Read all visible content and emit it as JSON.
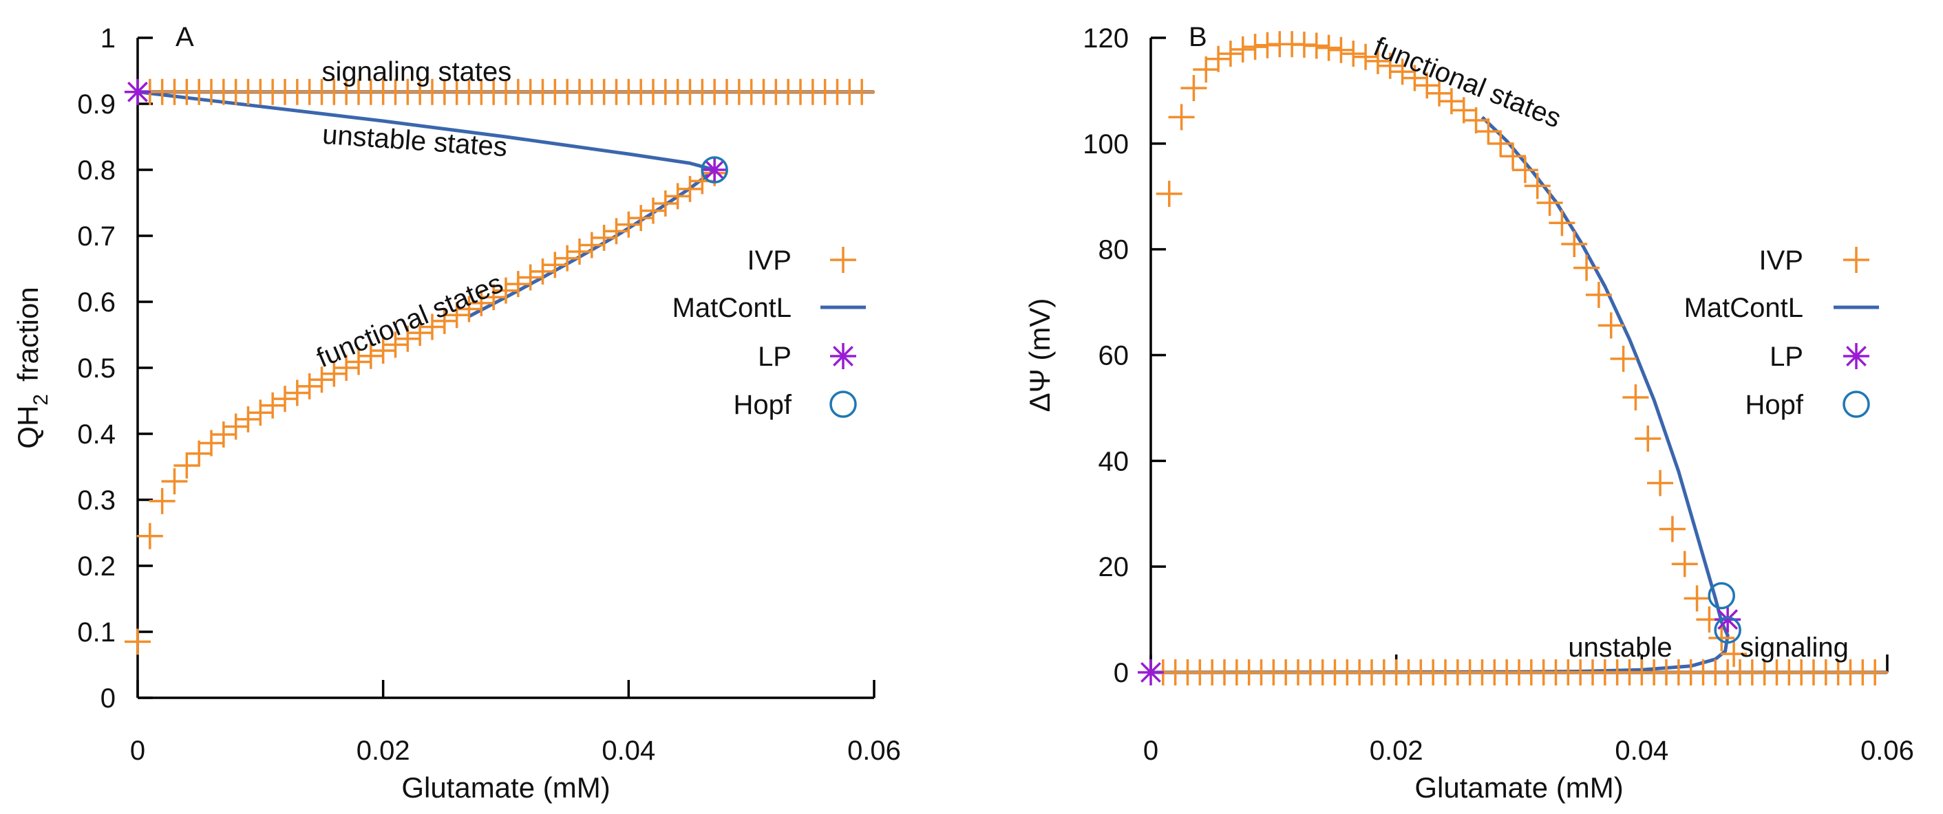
{
  "colors": {
    "ivp": "#F28E2B",
    "matcont": "#3B66AE",
    "lp": "#9A1BD4",
    "hopf": "#1F77B4"
  },
  "chart_data": [
    {
      "type": "line",
      "panel_label": "A",
      "xlabel": "Glutamate (mM)",
      "ylabel_main": "QH",
      "ylabel_sub": "2",
      "ylabel_rest": "fraction",
      "xlim": [
        0,
        0.06
      ],
      "ylim": [
        0,
        1
      ],
      "xticks": [
        0,
        0.02,
        0.04,
        0.06
      ],
      "xtick_labels": [
        "0",
        "0.02",
        "0.04",
        "0.06"
      ],
      "yticks": [
        0,
        0.1,
        0.2,
        0.3,
        0.4,
        0.5,
        0.6,
        0.7,
        0.8,
        0.9,
        1
      ],
      "ytick_labels": [
        "0",
        "0.1",
        "0.2",
        "0.3",
        "0.4",
        "0.5",
        "0.6",
        "0.7",
        "0.8",
        "0.9",
        "1"
      ],
      "annotations": [
        {
          "text": "signaling states",
          "x": 0.015,
          "y": 0.935,
          "rotate": 0
        },
        {
          "text": "unstable states",
          "x": 0.015,
          "y": 0.84,
          "rotate": 4
        },
        {
          "text": "functional states",
          "x": 0.015,
          "y": 0.5,
          "rotate": -23
        }
      ],
      "series": [
        {
          "name": "IVP",
          "kind": "marker-plus",
          "color_key": "ivp",
          "x": [
            0,
            0.001,
            0.002,
            0.003,
            0.004,
            0.005,
            0.006,
            0.007,
            0.008,
            0.009,
            0.01,
            0.011,
            0.012,
            0.013,
            0.014,
            0.015,
            0.016,
            0.017,
            0.018,
            0.019,
            0.02,
            0.021,
            0.022,
            0.023,
            0.024,
            0.025,
            0.026,
            0.027,
            0.028,
            0.029,
            0.03,
            0.031,
            0.032,
            0.033,
            0.034,
            0.035,
            0.036,
            0.037,
            0.038,
            0.039,
            0.04,
            0.041,
            0.042,
            0.043,
            0.044,
            0.045,
            0.046,
            0.047,
            0.001,
            0.002,
            0.003,
            0.004,
            0.005,
            0.006,
            0.007,
            0.008,
            0.009,
            0.01,
            0.011,
            0.012,
            0.013,
            0.014,
            0.015,
            0.016,
            0.017,
            0.018,
            0.019,
            0.02,
            0.021,
            0.022,
            0.023,
            0.024,
            0.025,
            0.026,
            0.027,
            0.028,
            0.029,
            0.03,
            0.031,
            0.032,
            0.033,
            0.034,
            0.035,
            0.036,
            0.037,
            0.038,
            0.039,
            0.04,
            0.041,
            0.042,
            0.043,
            0.044,
            0.045,
            0.046,
            0.047,
            0.048,
            0.049,
            0.05,
            0.051,
            0.052,
            0.053,
            0.054,
            0.055,
            0.056,
            0.057,
            0.058,
            0.059
          ],
          "y": [
            0.085,
            0.245,
            0.298,
            0.328,
            0.352,
            0.37,
            0.386,
            0.399,
            0.411,
            0.422,
            0.432,
            0.443,
            0.453,
            0.462,
            0.472,
            0.482,
            0.491,
            0.5,
            0.509,
            0.518,
            0.526,
            0.535,
            0.544,
            0.553,
            0.562,
            0.571,
            0.58,
            0.589,
            0.598,
            0.607,
            0.617,
            0.627,
            0.637,
            0.646,
            0.656,
            0.666,
            0.676,
            0.686,
            0.697,
            0.707,
            0.717,
            0.727,
            0.738,
            0.749,
            0.76,
            0.771,
            0.783,
            0.795,
            0.918,
            0.918,
            0.918,
            0.918,
            0.918,
            0.918,
            0.918,
            0.918,
            0.918,
            0.918,
            0.918,
            0.918,
            0.918,
            0.918,
            0.918,
            0.918,
            0.918,
            0.918,
            0.918,
            0.918,
            0.918,
            0.918,
            0.918,
            0.918,
            0.918,
            0.918,
            0.918,
            0.918,
            0.918,
            0.918,
            0.918,
            0.918,
            0.918,
            0.918,
            0.918,
            0.918,
            0.918,
            0.918,
            0.918,
            0.918,
            0.918,
            0.918,
            0.918,
            0.918,
            0.918,
            0.918,
            0.918,
            0.918,
            0.918,
            0.918,
            0.918,
            0.918,
            0.918,
            0.918,
            0.918,
            0.918,
            0.918,
            0.918,
            0.918
          ]
        },
        {
          "name": "MatContL",
          "kind": "line",
          "color_key": "matcont",
          "x": [
            0.06,
            0,
            0.005,
            0.01,
            0.015,
            0.02,
            0.025,
            0.03,
            0.035,
            0.04,
            0.045,
            0.047,
            0.045,
            0.042,
            0.039,
            0.036,
            0.033,
            0.03,
            0.027
          ],
          "y": [
            0.918,
            0.918,
            0.907,
            0.896,
            0.885,
            0.874,
            0.862,
            0.85,
            0.837,
            0.824,
            0.81,
            0.8,
            0.772,
            0.735,
            0.7,
            0.668,
            0.637,
            0.607,
            0.578
          ]
        },
        {
          "name": "LP",
          "kind": "marker-star",
          "color_key": "lp",
          "x": [
            0,
            0.047
          ],
          "y": [
            0.918,
            0.8
          ]
        },
        {
          "name": "Hopf",
          "kind": "marker-circle",
          "color_key": "hopf",
          "x": [
            0.047
          ],
          "y": [
            0.8
          ]
        }
      ],
      "legend_placement": "right"
    },
    {
      "type": "line",
      "panel_label": "B",
      "xlabel": "Glutamate (mM)",
      "ylabel_main": "ΔΨ (mV)",
      "xlim": [
        0,
        0.06
      ],
      "ylim": [
        0,
        120
      ],
      "xticks": [
        0,
        0.02,
        0.04,
        0.06
      ],
      "xtick_labels": [
        "0",
        "0.02",
        "0.04",
        "0.06"
      ],
      "yticks": [
        0,
        20,
        40,
        60,
        80,
        100,
        120
      ],
      "ytick_labels": [
        "0",
        "20",
        "40",
        "60",
        "80",
        "100",
        "120"
      ],
      "annotations": [
        {
          "text": "functional states",
          "x": 0.018,
          "y": 117,
          "rotate": 22
        },
        {
          "text": "unstable",
          "x": 0.034,
          "y": 3,
          "rotate": 0
        },
        {
          "text": "signaling",
          "x": 0.048,
          "y": 3,
          "rotate": 0
        }
      ],
      "series": [
        {
          "name": "IVP",
          "kind": "marker-plus",
          "color_key": "ivp",
          "x": [
            0.0015,
            0.0025,
            0.0035,
            0.0045,
            0.0055,
            0.0065,
            0.0075,
            0.0085,
            0.0095,
            0.0105,
            0.0115,
            0.0125,
            0.0135,
            0.0145,
            0.0155,
            0.0165,
            0.0175,
            0.0185,
            0.0195,
            0.0205,
            0.0215,
            0.0225,
            0.0235,
            0.0245,
            0.0255,
            0.0265,
            0.0275,
            0.0285,
            0.0295,
            0.0305,
            0.0315,
            0.0325,
            0.0335,
            0.0345,
            0.0355,
            0.0365,
            0.0375,
            0.0385,
            0.0395,
            0.0405,
            0.0415,
            0.0425,
            0.0435,
            0.0445,
            0.0455,
            0.0465,
            0.0475,
            0.001,
            0.002,
            0.003,
            0.004,
            0.005,
            0.006,
            0.007,
            0.008,
            0.009,
            0.01,
            0.011,
            0.012,
            0.013,
            0.014,
            0.015,
            0.016,
            0.017,
            0.018,
            0.019,
            0.02,
            0.021,
            0.022,
            0.023,
            0.024,
            0.025,
            0.026,
            0.027,
            0.028,
            0.029,
            0.03,
            0.031,
            0.032,
            0.033,
            0.034,
            0.035,
            0.036,
            0.037,
            0.038,
            0.039,
            0.04,
            0.041,
            0.042,
            0.043,
            0.044,
            0.045,
            0.046,
            0.047,
            0.048,
            0.049,
            0.05,
            0.051,
            0.052,
            0.053,
            0.054,
            0.055,
            0.056,
            0.057,
            0.058,
            0.059
          ],
          "y": [
            90.5,
            105,
            110.5,
            114,
            116,
            117,
            117.8,
            118.3,
            118.6,
            118.8,
            118.8,
            118.7,
            118.5,
            118.1,
            117.7,
            117,
            116.4,
            115.6,
            114.7,
            113.6,
            112.4,
            111,
            109.5,
            108,
            106.3,
            104.4,
            102.3,
            100,
            97.6,
            95,
            92,
            88.8,
            85,
            81,
            76.5,
            71.4,
            65.6,
            59.3,
            52,
            44.2,
            35.8,
            27.1,
            20.5,
            14,
            10,
            6.5,
            3.5,
            0,
            0,
            0,
            0,
            0,
            0,
            0,
            0,
            0,
            0,
            0,
            0,
            0,
            0,
            0,
            0,
            0,
            0,
            0,
            0,
            0,
            0,
            0,
            0,
            0,
            0,
            0,
            0,
            0,
            0,
            0,
            0,
            0,
            0,
            0,
            0,
            0,
            0,
            0,
            0,
            0,
            0,
            0,
            0,
            0,
            0,
            0,
            0,
            0,
            0,
            0,
            0,
            0,
            0,
            0,
            0,
            0,
            0,
            0
          ]
        },
        {
          "name": "MatContL",
          "kind": "line",
          "color_key": "matcont",
          "x": [
            0.027,
            0.029,
            0.031,
            0.033,
            0.035,
            0.037,
            0.039,
            0.041,
            0.043,
            0.045,
            0.046,
            0.0465,
            0.047,
            0.0468,
            0.046,
            0.044,
            0.04,
            0.035,
            0.03,
            0.02,
            0.01,
            0.0,
            0.047,
            0.06
          ],
          "y": [
            105,
            100.5,
            95,
            89,
            81.5,
            73,
            63,
            51.5,
            38,
            22,
            14,
            9.5,
            7,
            4,
            2.5,
            1.2,
            0.5,
            0.2,
            0.1,
            0.05,
            0.02,
            0,
            0,
            0
          ]
        },
        {
          "name": "LP",
          "kind": "marker-star",
          "color_key": "lp",
          "x": [
            0,
            0.047
          ],
          "y": [
            0,
            10
          ]
        },
        {
          "name": "Hopf",
          "kind": "marker-circle",
          "color_key": "hopf",
          "x": [
            0.0465,
            0.047
          ],
          "y": [
            14.5,
            8
          ]
        }
      ],
      "legend_placement": "right"
    }
  ],
  "legend": [
    {
      "label": "IVP",
      "kind": "marker-plus",
      "color_key": "ivp"
    },
    {
      "label": "MatContL",
      "kind": "line",
      "color_key": "matcont"
    },
    {
      "label": "LP",
      "kind": "marker-star",
      "color_key": "lp"
    },
    {
      "label": "Hopf",
      "kind": "marker-circle",
      "color_key": "hopf"
    }
  ]
}
